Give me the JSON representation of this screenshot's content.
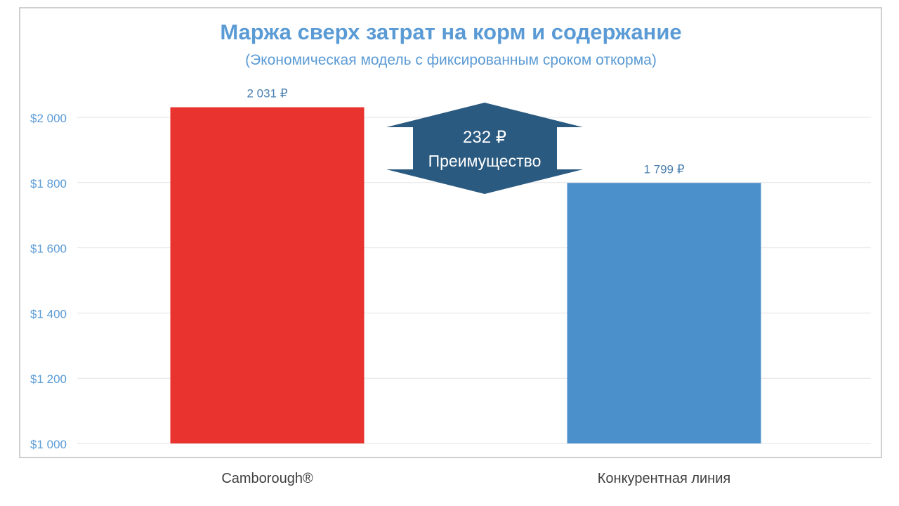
{
  "chart_data": {
    "type": "bar",
    "title": "Маржа сверх затрат на корм и содержание",
    "subtitle": "(Экономическая модель с фиксированным сроком откорма)",
    "categories": [
      "Camborough®",
      "Конкурентная линия"
    ],
    "values": [
      2031,
      1799
    ],
    "data_labels": [
      "2 031 ₽",
      "1 799 ₽"
    ],
    "bar_colors": [
      "#E8332E",
      "#4B8FCB"
    ],
    "ylim": [
      1000,
      2000
    ],
    "yticks": [
      1000,
      1200,
      1400,
      1600,
      1800,
      2000
    ],
    "ytick_labels": [
      "$1 000",
      "$1 200",
      "$1 400",
      "$1 600",
      "$1 800",
      "$2 000"
    ],
    "grid": true,
    "annotation": {
      "line1": "232 ₽",
      "line2": "Преимущество",
      "color": "#2B5A80"
    }
  },
  "colors": {
    "title": "#5B9BD5",
    "tick_label": "#5B9BD5",
    "data_label": "#4A7FAF",
    "category_label": "#404040",
    "grid": "#E3E3E3",
    "frame": "#BFBFBF"
  }
}
